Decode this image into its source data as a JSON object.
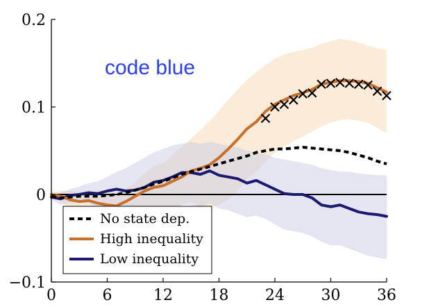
{
  "chart_data": {
    "type": "line",
    "title": "",
    "xlabel": "",
    "ylabel": "",
    "xlim": [
      0,
      36
    ],
    "ylim": [
      -0.1,
      0.2
    ],
    "x_ticks": [
      0,
      6,
      12,
      18,
      24,
      30,
      36
    ],
    "y_ticks": [
      -0.1,
      0,
      0.1,
      0.2
    ],
    "x_tick_labels": [
      "0",
      "6",
      "12",
      "18",
      "24",
      "30",
      "36"
    ],
    "y_tick_labels": [
      "−0.1",
      "0",
      "0.1",
      "0.2"
    ],
    "annotation": {
      "text": "code blue",
      "color": "#2b3bff"
    },
    "legend_position": "bottom-left",
    "zero_line": true,
    "series": [
      {
        "name": "No state dep.",
        "color": "#000000",
        "style": "dashed",
        "x": [
          0,
          1,
          2,
          3,
          4,
          5,
          6,
          7,
          8,
          9,
          10,
          11,
          12,
          13,
          14,
          15,
          16,
          17,
          18,
          19,
          20,
          21,
          22,
          23,
          24,
          25,
          26,
          27,
          28,
          29,
          30,
          31,
          32,
          33,
          34,
          35,
          36
        ],
        "values": [
          -0.002,
          -0.004,
          -0.003,
          -0.002,
          -0.002,
          -0.002,
          -0.001,
          0.0,
          0.002,
          0.005,
          0.008,
          0.012,
          0.015,
          0.019,
          0.023,
          0.026,
          0.029,
          0.032,
          0.035,
          0.038,
          0.041,
          0.044,
          0.048,
          0.05,
          0.052,
          0.052,
          0.053,
          0.054,
          0.053,
          0.052,
          0.051,
          0.05,
          0.048,
          0.045,
          0.042,
          0.038,
          0.035
        ]
      },
      {
        "name": "High inequality",
        "color": "#c8702a",
        "style": "solid",
        "x": [
          0,
          1,
          2,
          3,
          4,
          5,
          6,
          7,
          8,
          9,
          10,
          11,
          12,
          13,
          14,
          15,
          16,
          17,
          18,
          19,
          20,
          21,
          22,
          23,
          24,
          25,
          26,
          27,
          28,
          29,
          30,
          31,
          32,
          33,
          34,
          35,
          36
        ],
        "values": [
          0.0,
          -0.002,
          -0.006,
          -0.008,
          -0.007,
          -0.01,
          -0.012,
          -0.013,
          -0.008,
          -0.002,
          0.004,
          0.008,
          0.01,
          0.015,
          0.02,
          0.027,
          0.03,
          0.034,
          0.042,
          0.052,
          0.063,
          0.075,
          0.083,
          0.095,
          0.103,
          0.108,
          0.113,
          0.116,
          0.12,
          0.126,
          0.128,
          0.13,
          0.13,
          0.129,
          0.127,
          0.122,
          0.117
        ],
        "band_upper": [
          0.002,
          0.004,
          0.004,
          0.003,
          0.004,
          0.002,
          0.0,
          -0.002,
          0.006,
          0.014,
          0.024,
          0.032,
          0.036,
          0.045,
          0.054,
          0.064,
          0.074,
          0.084,
          0.096,
          0.108,
          0.12,
          0.131,
          0.14,
          0.148,
          0.155,
          0.16,
          0.163,
          0.165,
          0.168,
          0.172,
          0.175,
          0.178,
          0.176,
          0.174,
          0.17,
          0.167,
          0.165
        ],
        "band_lower": [
          -0.002,
          -0.008,
          -0.016,
          -0.02,
          -0.019,
          -0.022,
          -0.025,
          -0.026,
          -0.024,
          -0.02,
          -0.016,
          -0.016,
          -0.016,
          -0.014,
          -0.012,
          -0.008,
          -0.014,
          -0.016,
          -0.012,
          -0.006,
          0.004,
          0.018,
          0.026,
          0.038,
          0.048,
          0.055,
          0.061,
          0.066,
          0.072,
          0.078,
          0.082,
          0.085,
          0.086,
          0.084,
          0.082,
          0.076,
          0.07
        ]
      },
      {
        "name": "Low inequality",
        "color": "#1c1a6e",
        "style": "solid",
        "x": [
          0,
          1,
          2,
          3,
          4,
          5,
          6,
          7,
          8,
          9,
          10,
          11,
          12,
          13,
          14,
          15,
          16,
          17,
          18,
          19,
          20,
          21,
          22,
          23,
          24,
          25,
          26,
          27,
          28,
          29,
          30,
          31,
          32,
          33,
          34,
          35,
          36
        ],
        "values": [
          -0.003,
          -0.005,
          -0.001,
          0.0,
          0.002,
          0.001,
          0.004,
          0.006,
          0.004,
          0.005,
          0.008,
          0.014,
          0.016,
          0.02,
          0.025,
          0.025,
          0.023,
          0.027,
          0.022,
          0.02,
          0.018,
          0.013,
          0.016,
          0.011,
          0.006,
          0.001,
          0.0,
          0.0,
          -0.004,
          -0.012,
          -0.014,
          -0.012,
          -0.016,
          -0.02,
          -0.022,
          -0.023,
          -0.025
        ],
        "band_upper": [
          0.002,
          0.002,
          0.006,
          0.009,
          0.013,
          0.015,
          0.02,
          0.026,
          0.03,
          0.036,
          0.042,
          0.048,
          0.052,
          0.056,
          0.058,
          0.06,
          0.058,
          0.06,
          0.058,
          0.056,
          0.054,
          0.05,
          0.048,
          0.046,
          0.042,
          0.04,
          0.038,
          0.036,
          0.034,
          0.03,
          0.028,
          0.026,
          0.026,
          0.024,
          0.023,
          0.022,
          0.022
        ],
        "band_lower": [
          -0.006,
          -0.012,
          -0.01,
          -0.01,
          -0.01,
          -0.014,
          -0.014,
          -0.014,
          -0.02,
          -0.024,
          -0.026,
          -0.024,
          -0.022,
          -0.018,
          -0.012,
          -0.012,
          -0.014,
          -0.01,
          -0.016,
          -0.018,
          -0.022,
          -0.026,
          -0.024,
          -0.028,
          -0.034,
          -0.04,
          -0.042,
          -0.044,
          -0.048,
          -0.054,
          -0.058,
          -0.058,
          -0.062,
          -0.066,
          -0.07,
          -0.072,
          -0.074
        ]
      }
    ],
    "markers": {
      "symbol": "×",
      "color": "#000000",
      "x": [
        23,
        24,
        25,
        26,
        27,
        28,
        29,
        30,
        31,
        32,
        33,
        34,
        35,
        36
      ],
      "values": [
        0.087,
        0.1,
        0.103,
        0.108,
        0.115,
        0.116,
        0.126,
        0.127,
        0.128,
        0.127,
        0.126,
        0.125,
        0.118,
        0.113
      ]
    }
  }
}
